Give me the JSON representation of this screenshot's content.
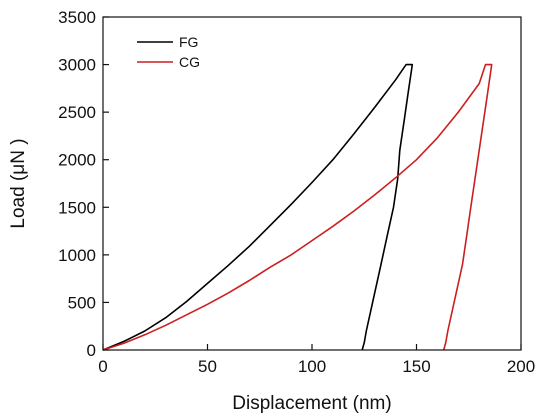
{
  "chart_data": {
    "type": "line",
    "xlabel": "Displacement (nm)",
    "ylabel": "Load (μN )",
    "xlim": [
      0,
      200
    ],
    "ylim": [
      0,
      3500
    ],
    "xticks": [
      0,
      50,
      100,
      150,
      200
    ],
    "yticks": [
      0,
      500,
      1000,
      1500,
      2000,
      2500,
      3000,
      3500
    ],
    "x_tick_labels": [
      "0",
      "50",
      "100",
      "150",
      "200"
    ],
    "y_tick_labels": [
      "0",
      "500",
      "1000",
      "1500",
      "2000",
      "2500",
      "3000",
      "3500"
    ],
    "grid": false,
    "legend_position": "top-left",
    "series": [
      {
        "name": "FG",
        "color": "#000000",
        "points": [
          [
            0,
            0
          ],
          [
            10,
            90
          ],
          [
            20,
            200
          ],
          [
            30,
            340
          ],
          [
            40,
            510
          ],
          [
            50,
            700
          ],
          [
            60,
            890
          ],
          [
            70,
            1090
          ],
          [
            80,
            1310
          ],
          [
            90,
            1530
          ],
          [
            100,
            1760
          ],
          [
            110,
            2000
          ],
          [
            120,
            2270
          ],
          [
            130,
            2550
          ],
          [
            140,
            2840
          ],
          [
            145,
            3000
          ],
          [
            148,
            3000
          ],
          [
            146,
            2700
          ],
          [
            144,
            2400
          ],
          [
            142,
            2100
          ],
          [
            141,
            1800
          ],
          [
            139,
            1500
          ],
          [
            136,
            1200
          ],
          [
            133,
            900
          ],
          [
            130,
            600
          ],
          [
            128,
            400
          ],
          [
            126,
            200
          ],
          [
            125,
            80
          ],
          [
            124,
            0
          ]
        ]
      },
      {
        "name": "CG",
        "color": "#cc1f1f",
        "points": [
          [
            0,
            0
          ],
          [
            10,
            70
          ],
          [
            20,
            160
          ],
          [
            30,
            260
          ],
          [
            40,
            370
          ],
          [
            50,
            480
          ],
          [
            60,
            600
          ],
          [
            70,
            730
          ],
          [
            80,
            870
          ],
          [
            90,
            1000
          ],
          [
            100,
            1150
          ],
          [
            110,
            1300
          ],
          [
            120,
            1460
          ],
          [
            130,
            1630
          ],
          [
            140,
            1810
          ],
          [
            150,
            2000
          ],
          [
            160,
            2230
          ],
          [
            170,
            2500
          ],
          [
            180,
            2800
          ],
          [
            183,
            3000
          ],
          [
            186,
            3000
          ],
          [
            184,
            2700
          ],
          [
            182,
            2400
          ],
          [
            180,
            2100
          ],
          [
            178,
            1800
          ],
          [
            176,
            1500
          ],
          [
            174,
            1200
          ],
          [
            172,
            900
          ],
          [
            169,
            600
          ],
          [
            167,
            400
          ],
          [
            165,
            200
          ],
          [
            164,
            80
          ],
          [
            163,
            0
          ]
        ]
      }
    ]
  }
}
